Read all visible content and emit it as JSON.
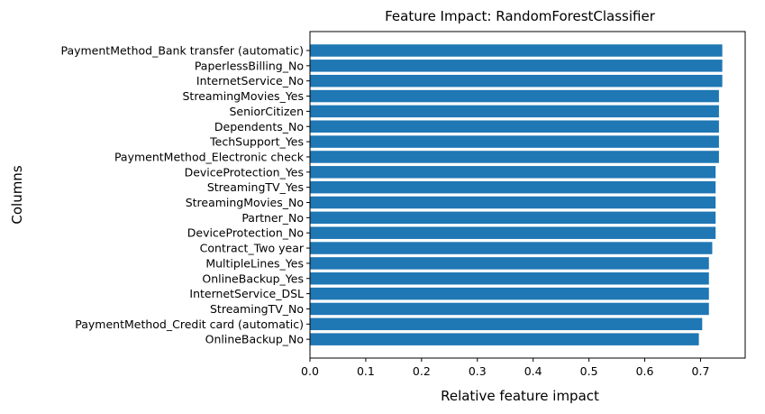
{
  "chart_data": {
    "type": "bar",
    "orientation": "horizontal",
    "title": "Feature Impact: RandomForestClassifier",
    "xlabel": "Relative feature impact",
    "ylabel": "Columns",
    "xlim": [
      0.0,
      0.78
    ],
    "xticks": [
      "0.0",
      "0.1",
      "0.2",
      "0.3",
      "0.4",
      "0.5",
      "0.6",
      "0.7"
    ],
    "grid": false,
    "bar_color": "#1f77b4",
    "categories": [
      "PaymentMethod_Bank transfer (automatic)",
      "PaperlessBilling_No",
      "InternetService_No",
      "StreamingMovies_Yes",
      "SeniorCitizen",
      "Dependents_No",
      "TechSupport_Yes",
      "PaymentMethod_Electronic check",
      "DeviceProtection_Yes",
      "StreamingTV_Yes",
      "StreamingMovies_No",
      "Partner_No",
      "DeviceProtection_No",
      "Contract_Two year",
      "MultipleLines_Yes",
      "OnlineBackup_Yes",
      "InternetService_DSL",
      "StreamingTV_No",
      "PaymentMethod_Credit card (automatic)",
      "OnlineBackup_No"
    ],
    "values": [
      0.739,
      0.739,
      0.739,
      0.733,
      0.733,
      0.733,
      0.733,
      0.733,
      0.727,
      0.727,
      0.727,
      0.727,
      0.727,
      0.721,
      0.715,
      0.715,
      0.715,
      0.715,
      0.703,
      0.697
    ]
  }
}
